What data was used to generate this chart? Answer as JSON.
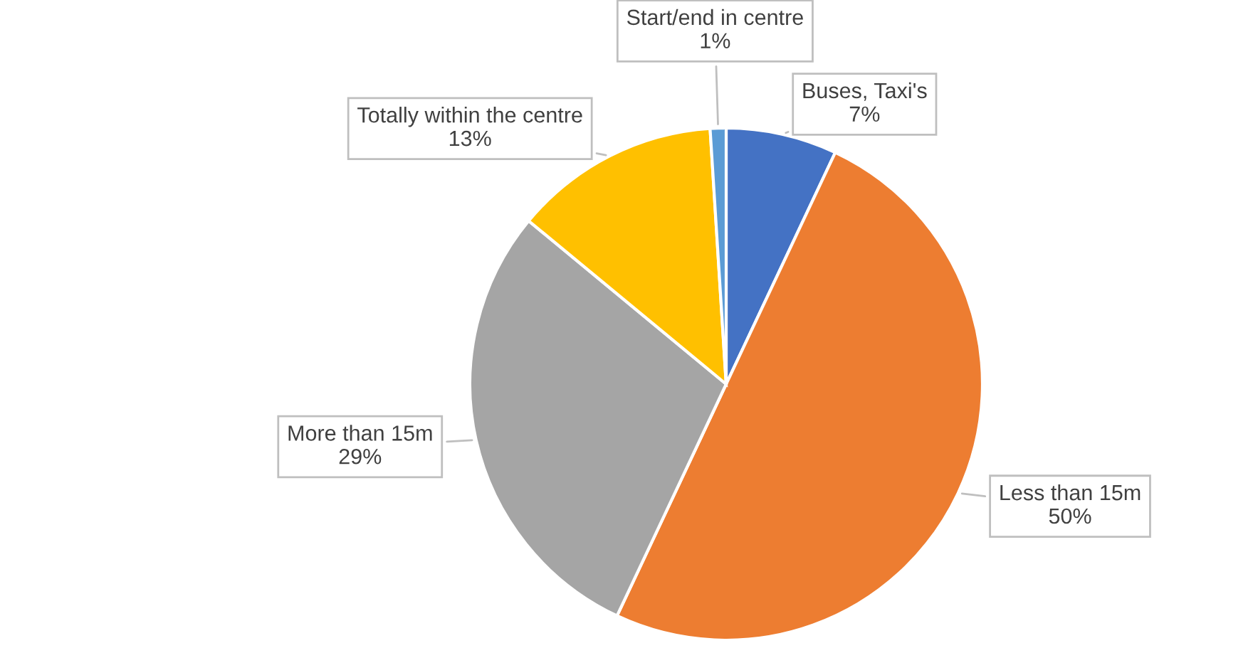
{
  "chart_data": {
    "type": "pie",
    "categories": [
      "Buses, Taxi's",
      "Less than 15m",
      "More than 15m",
      "Totally within the centre",
      "Start/end in centre"
    ],
    "values": [
      7,
      50,
      29,
      13,
      1
    ],
    "colors": [
      "#4472c4",
      "#ed7d31",
      "#a5a5a5",
      "#ffc000",
      "#5b9bd5"
    ],
    "value_labels": [
      "7%",
      "50%",
      "29%",
      "13%",
      "1%"
    ]
  }
}
